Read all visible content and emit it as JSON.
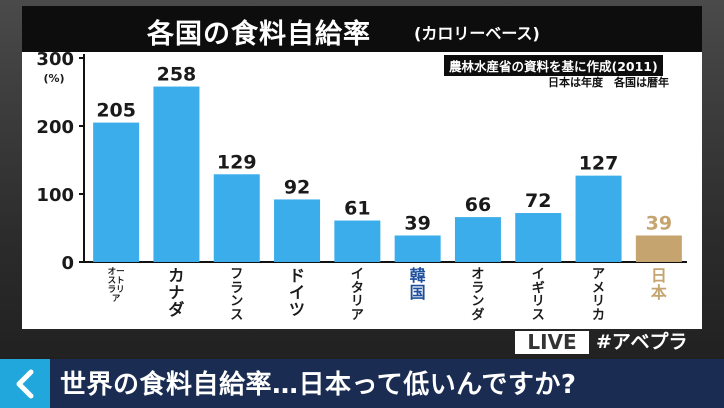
{
  "header": {
    "title": "各国の食料自給率",
    "subtitle": "(カロリーベース)"
  },
  "source": "農林水産省の資料を基に作成(2011)",
  "note": "日本は年度　各国は暦年",
  "chart_data": {
    "type": "bar",
    "title": "各国の食料自給率",
    "subtitle": "(カロリーベース)",
    "unit": "(%)",
    "ylabel": "",
    "xlabel": "",
    "ylim": [
      0,
      300
    ],
    "yticks": [
      0,
      100,
      200,
      300
    ],
    "grid": false,
    "legend": "none",
    "categories": [
      "オーストラリア",
      "カナダ",
      "フランス",
      "ドイツ",
      "イタリア",
      "韓国",
      "オランダ",
      "イギリス",
      "アメリカ",
      "日本"
    ],
    "values": [
      205,
      258,
      129,
      92,
      61,
      39,
      66,
      72,
      127,
      39
    ],
    "colors": {
      "default_bar": "#3aadea",
      "highlight_bar": "#c6a46f",
      "default_label": "#1a1a1a",
      "korea_label": "#1d4f9c",
      "highlight_label": "#c6a46f"
    },
    "highlight_index": 9,
    "blue_label_index": 5
  },
  "overlay": {
    "live_badge": "LIVE",
    "hashtag": "#アベプラ"
  },
  "footer": {
    "back_icon": "chevron-left-icon",
    "caption": "世界の食料自給率…日本って低いんですか?"
  }
}
